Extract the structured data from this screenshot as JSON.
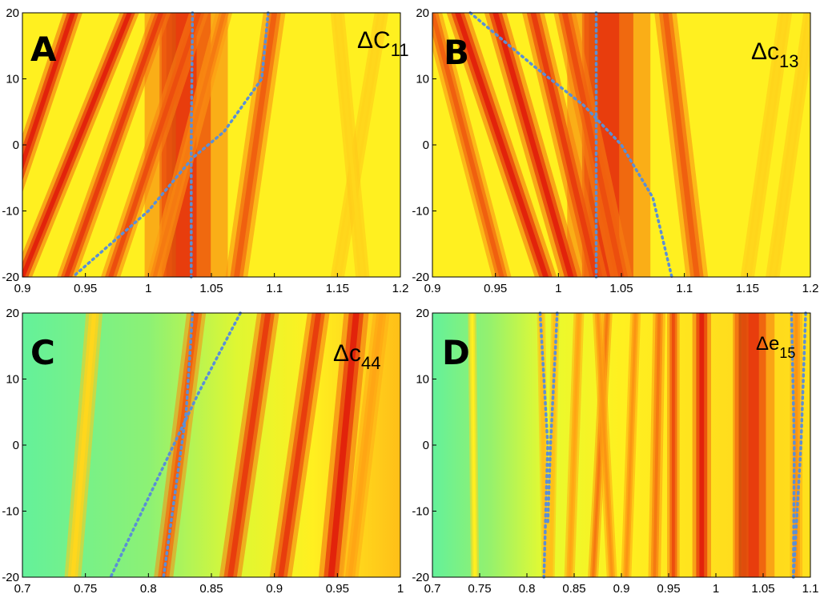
{
  "colors": {
    "low": "#3cf0bf",
    "mid_low": "#c8f23e",
    "mid": "#ffff22",
    "mid_high": "#ffa614",
    "high": "#e01a0a",
    "peak": "#6a0000",
    "guide_line": "#5b8fd6"
  },
  "chart_data": [
    {
      "type": "heatmap",
      "panel": "A",
      "label": "ΔC",
      "label_sub": "11",
      "xlim": [
        0.9,
        1.2
      ],
      "ylim": [
        -20,
        20
      ],
      "xticks": [
        0.9,
        0.95,
        1,
        1.05,
        1.1,
        1.15,
        1.2
      ],
      "xtick_labels": [
        "0.9",
        "0.95",
        "1",
        "1.05",
        "1.1",
        "1.15",
        "1.2"
      ],
      "yticks": [
        20,
        10,
        0,
        -10,
        -20
      ],
      "ytick_labels": [
        "20",
        "10",
        "0",
        "-10",
        "-20"
      ],
      "background_level": 0.55,
      "bands": [
        {
          "x_bottom": 1.022,
          "x_top": 1.022,
          "width": 0.012,
          "level": 1.0
        },
        {
          "x_bottom": 1.03,
          "x_top": 1.03,
          "width": 0.03,
          "level": 0.82
        },
        {
          "x_bottom": 0.87,
          "x_top": 0.94,
          "width": 0.007,
          "level": 0.85
        },
        {
          "x_bottom": 0.9,
          "x_top": 0.985,
          "width": 0.007,
          "level": 0.85
        },
        {
          "x_bottom": 0.935,
          "x_top": 1.01,
          "width": 0.007,
          "level": 0.82
        },
        {
          "x_bottom": 0.97,
          "x_top": 1.04,
          "width": 0.007,
          "level": 0.8
        },
        {
          "x_bottom": 1.005,
          "x_top": 1.06,
          "width": 0.006,
          "level": 0.75
        },
        {
          "x_bottom": 1.07,
          "x_top": 1.1,
          "width": 0.008,
          "level": 0.78
        },
        {
          "x_bottom": 1.15,
          "x_top": 1.185,
          "width": 0.005,
          "level": 0.6
        },
        {
          "x_bottom": 1.17,
          "x_top": 1.15,
          "width": 0.005,
          "level": 0.6
        }
      ],
      "guide_lines": [
        {
          "style": "dotted",
          "points": [
            [
              1.035,
              20
            ],
            [
              1.034,
              0
            ],
            [
              1.034,
              -20
            ]
          ]
        },
        {
          "style": "dotted",
          "points": [
            [
              1.095,
              20
            ],
            [
              1.09,
              10
            ],
            [
              1.06,
              2
            ],
            [
              1.035,
              -2
            ],
            [
              1.0,
              -10
            ],
            [
              0.94,
              -20
            ]
          ]
        }
      ]
    },
    {
      "type": "heatmap",
      "panel": "B",
      "label": "Δc",
      "label_sub": "13",
      "xlim": [
        0.9,
        1.2
      ],
      "ylim": [
        -20,
        20
      ],
      "xticks": [
        0.9,
        0.95,
        1,
        1.05,
        1.1,
        1.15,
        1.2
      ],
      "xtick_labels": [
        "0.9",
        "0.95",
        "1",
        "1.05",
        "1.1",
        "1.15",
        "1.2"
      ],
      "yticks": [
        20,
        10,
        0,
        -10,
        -20
      ],
      "ytick_labels": [
        "20",
        "10",
        "0",
        "-10",
        "-20"
      ],
      "background_level": 0.55,
      "bands": [
        {
          "x_bottom": 1.032,
          "x_top": 1.032,
          "width": 0.012,
          "level": 1.0
        },
        {
          "x_bottom": 1.04,
          "x_top": 1.04,
          "width": 0.03,
          "level": 0.82
        },
        {
          "x_bottom": 0.99,
          "x_top": 0.92,
          "width": 0.008,
          "level": 0.85
        },
        {
          "x_bottom": 1.01,
          "x_top": 0.95,
          "width": 0.008,
          "level": 0.85
        },
        {
          "x_bottom": 1.03,
          "x_top": 0.98,
          "width": 0.008,
          "level": 0.82
        },
        {
          "x_bottom": 1.05,
          "x_top": 1.005,
          "width": 0.008,
          "level": 0.8
        },
        {
          "x_bottom": 0.955,
          "x_top": 0.9,
          "width": 0.007,
          "level": 0.78
        },
        {
          "x_bottom": 1.11,
          "x_top": 1.085,
          "width": 0.008,
          "level": 0.78
        },
        {
          "x_bottom": 1.17,
          "x_top": 1.2,
          "width": 0.005,
          "level": 0.6
        },
        {
          "x_bottom": 1.15,
          "x_top": 1.18,
          "width": 0.005,
          "level": 0.6
        }
      ],
      "guide_lines": [
        {
          "style": "dotted",
          "points": [
            [
              1.03,
              20
            ],
            [
              1.03,
              0
            ],
            [
              1.03,
              -20
            ]
          ]
        },
        {
          "style": "dotted",
          "points": [
            [
              0.93,
              20
            ],
            [
              0.98,
              12
            ],
            [
              1.02,
              6
            ],
            [
              1.05,
              0
            ],
            [
              1.075,
              -8
            ],
            [
              1.09,
              -20
            ]
          ]
        }
      ]
    },
    {
      "type": "heatmap",
      "panel": "C",
      "label": "Δc",
      "label_sub": "44",
      "xlim": [
        0.7,
        1
      ],
      "ylim": [
        -20,
        20
      ],
      "xticks": [
        0.7,
        0.75,
        0.8,
        0.85,
        0.9,
        0.95,
        1
      ],
      "xtick_labels": [
        "0.7",
        "0.75",
        "0.8",
        "0.85",
        "0.9",
        "0.95",
        "1"
      ],
      "yticks": [
        20,
        10,
        0,
        -10,
        -20
      ],
      "ytick_labels": [
        "20",
        "10",
        "0",
        "-10",
        "-20"
      ],
      "background_level": 0.12,
      "background_gradient": [
        [
          0.7,
          0.1
        ],
        [
          0.8,
          0.2
        ],
        [
          0.87,
          0.42
        ],
        [
          0.93,
          0.55
        ],
        [
          1.0,
          0.65
        ]
      ],
      "bands": [
        {
          "x_bottom": 0.74,
          "x_top": 0.757,
          "width": 0.006,
          "level": 0.6
        },
        {
          "x_bottom": 0.812,
          "x_top": 0.838,
          "width": 0.007,
          "level": 0.78
        },
        {
          "x_bottom": 0.865,
          "x_top": 0.895,
          "width": 0.008,
          "level": 0.82
        },
        {
          "x_bottom": 0.905,
          "x_top": 0.935,
          "width": 0.008,
          "level": 0.82
        },
        {
          "x_bottom": 0.945,
          "x_top": 0.965,
          "width": 0.009,
          "level": 0.85
        },
        {
          "x_bottom": 0.96,
          "x_top": 0.985,
          "width": 0.006,
          "level": 0.7
        }
      ],
      "guide_lines": [
        {
          "style": "dotted",
          "points": [
            [
              0.835,
              20
            ],
            [
              0.83,
              5
            ],
            [
              0.812,
              -20
            ]
          ]
        },
        {
          "style": "dotted",
          "points": [
            [
              0.873,
              20
            ],
            [
              0.84,
              8
            ],
            [
              0.82,
              0
            ],
            [
              0.77,
              -20
            ]
          ]
        }
      ]
    },
    {
      "type": "heatmap",
      "panel": "D",
      "label": "Δe",
      "label_sub": "15",
      "xlim": [
        0.7,
        1.1
      ],
      "ylim": [
        -20,
        20
      ],
      "xticks": [
        0.7,
        0.75,
        0.8,
        0.85,
        0.9,
        0.95,
        1,
        1.05,
        1.1
      ],
      "xtick_labels": [
        "0.7",
        "0.75",
        "0.8",
        "0.85",
        "0.9",
        "0.95",
        "1",
        "1.05",
        "1.1"
      ],
      "yticks": [
        20,
        10,
        0,
        -10,
        -20
      ],
      "ytick_labels": [
        "20",
        "10",
        "0",
        "-10",
        "-20"
      ],
      "background_level": 0.12,
      "background_gradient": [
        [
          0.7,
          0.1
        ],
        [
          0.76,
          0.22
        ],
        [
          0.82,
          0.45
        ],
        [
          0.9,
          0.55
        ],
        [
          1.05,
          0.6
        ],
        [
          1.1,
          0.58
        ]
      ],
      "bands": [
        {
          "x_bottom": 0.745,
          "x_top": 0.742,
          "width": 0.004,
          "level": 0.55
        },
        {
          "x_bottom": 0.82,
          "x_top": 0.815,
          "width": 0.004,
          "level": 0.65
        },
        {
          "x_bottom": 0.825,
          "x_top": 0.83,
          "width": 0.004,
          "level": 0.65
        },
        {
          "x_bottom": 0.845,
          "x_top": 0.855,
          "width": 0.005,
          "level": 0.7
        },
        {
          "x_bottom": 0.87,
          "x_top": 0.885,
          "width": 0.005,
          "level": 0.75
        },
        {
          "x_bottom": 0.89,
          "x_top": 0.875,
          "width": 0.005,
          "level": 0.72
        },
        {
          "x_bottom": 0.905,
          "x_top": 0.915,
          "width": 0.005,
          "level": 0.72
        },
        {
          "x_bottom": 0.935,
          "x_top": 0.94,
          "width": 0.006,
          "level": 0.75
        },
        {
          "x_bottom": 0.955,
          "x_top": 0.955,
          "width": 0.006,
          "level": 0.8
        },
        {
          "x_bottom": 0.985,
          "x_top": 0.985,
          "width": 0.009,
          "level": 0.85
        },
        {
          "x_bottom": 1.03,
          "x_top": 1.03,
          "width": 0.009,
          "level": 1.0
        },
        {
          "x_bottom": 1.04,
          "x_top": 1.04,
          "width": 0.02,
          "level": 0.82
        },
        {
          "x_bottom": 1.085,
          "x_top": 1.085,
          "width": 0.006,
          "level": 0.72
        }
      ],
      "guide_lines": [
        {
          "style": "dotted",
          "points": [
            [
              0.814,
              20
            ],
            [
              0.822,
              0
            ],
            [
              0.818,
              -20
            ]
          ]
        },
        {
          "style": "dotted",
          "points": [
            [
              0.832,
              20
            ],
            [
              0.825,
              0
            ],
            [
              0.822,
              -12
            ]
          ]
        },
        {
          "style": "dotted",
          "points": [
            [
              1.08,
              20
            ],
            [
              1.083,
              0
            ],
            [
              1.082,
              -20
            ]
          ]
        },
        {
          "style": "dotted",
          "points": [
            [
              1.095,
              20
            ],
            [
              1.09,
              0
            ],
            [
              1.082,
              -20
            ]
          ]
        }
      ]
    }
  ]
}
